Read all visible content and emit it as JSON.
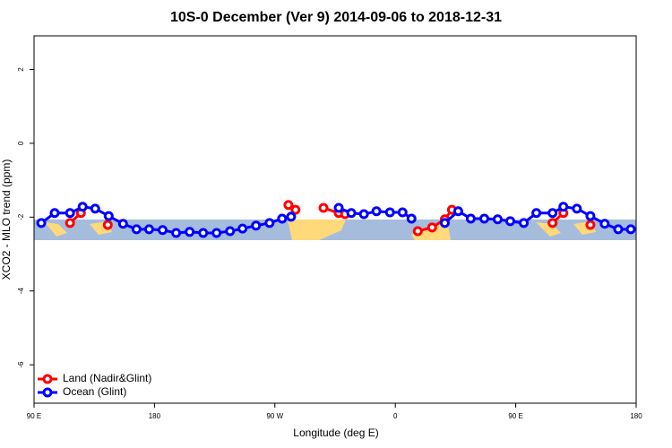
{
  "chart_data": {
    "type": "line",
    "title": "10S-0 December (Ver 9)   2014-09-06 to 2018-12-31",
    "x_label": "Longitude (deg E)",
    "y_label": "XCO2 - MLO trend (ppm)",
    "xlim": [
      90,
      540
    ],
    "ylim": [
      -7.04,
      2.91
    ],
    "xticks": [
      {
        "value": 90,
        "label": "90 E"
      },
      180,
      {
        "value": 270,
        "label": "90 W"
      },
      {
        "value": 360,
        "label": "0"
      },
      {
        "value": 450,
        "label": "90 E"
      },
      {
        "value": 540,
        "label": "180"
      }
    ],
    "yticks": [
      2,
      0,
      -2,
      -4,
      -6
    ],
    "legend": "bottom-left",
    "series": [
      {
        "name": "Land (Nadir&Glint)",
        "color": "#ff0000",
        "x": [
          116.9,
          125,
          null,
          145.1,
          null,
          280.1,
          285.4,
          null,
          306.3,
          317.7,
          322.4,
          null,
          376.8,
          387.5,
          397,
          402.3,
          null,
          477.5,
          485.6,
          null,
          505.8
        ],
        "values": [
          -2.16,
          -1.89,
          null,
          -2.21,
          null,
          -1.67,
          -1.8,
          null,
          -1.75,
          -1.89,
          -1.92,
          null,
          -2.38,
          -2.28,
          -2.06,
          -1.8,
          null,
          -2.16,
          -1.89,
          null,
          -2.21
        ]
      },
      {
        "name": "Ocean (Glint)",
        "color": "#0000ff",
        "x": [
          95.4,
          105.4,
          116.9,
          126.3,
          135.7,
          145.8,
          156.5,
          166.6,
          176,
          186.1,
          196.2,
          206.3,
          216.4,
          226.4,
          236.5,
          245.8,
          255.9,
          266,
          275.4,
          282.1,
          null,
          317.7,
          327.1,
          336.5,
          345.9,
          356,
          365.4,
          372.1,
          null,
          397,
          407,
          416.4,
          426.5,
          436.5,
          445.9,
          456,
          465.4,
          477.5,
          485.6,
          495.7,
          505.8,
          516.5,
          526.6,
          536
        ],
        "values": [
          -2.16,
          -1.89,
          -1.89,
          -1.72,
          -1.77,
          -1.97,
          -2.18,
          -2.33,
          -2.33,
          -2.35,
          -2.43,
          -2.4,
          -2.43,
          -2.43,
          -2.38,
          -2.31,
          -2.23,
          -2.16,
          -2.04,
          -1.99,
          null,
          -1.75,
          -1.89,
          -1.92,
          -1.84,
          -1.87,
          -1.87,
          -2.04,
          null,
          -2.16,
          -1.84,
          -2.04,
          -2.04,
          -2.06,
          -2.11,
          -2.16,
          -1.89,
          -1.89,
          -1.72,
          -1.77,
          -1.97,
          -2.18,
          -2.33,
          -2.33
        ]
      }
    ]
  }
}
